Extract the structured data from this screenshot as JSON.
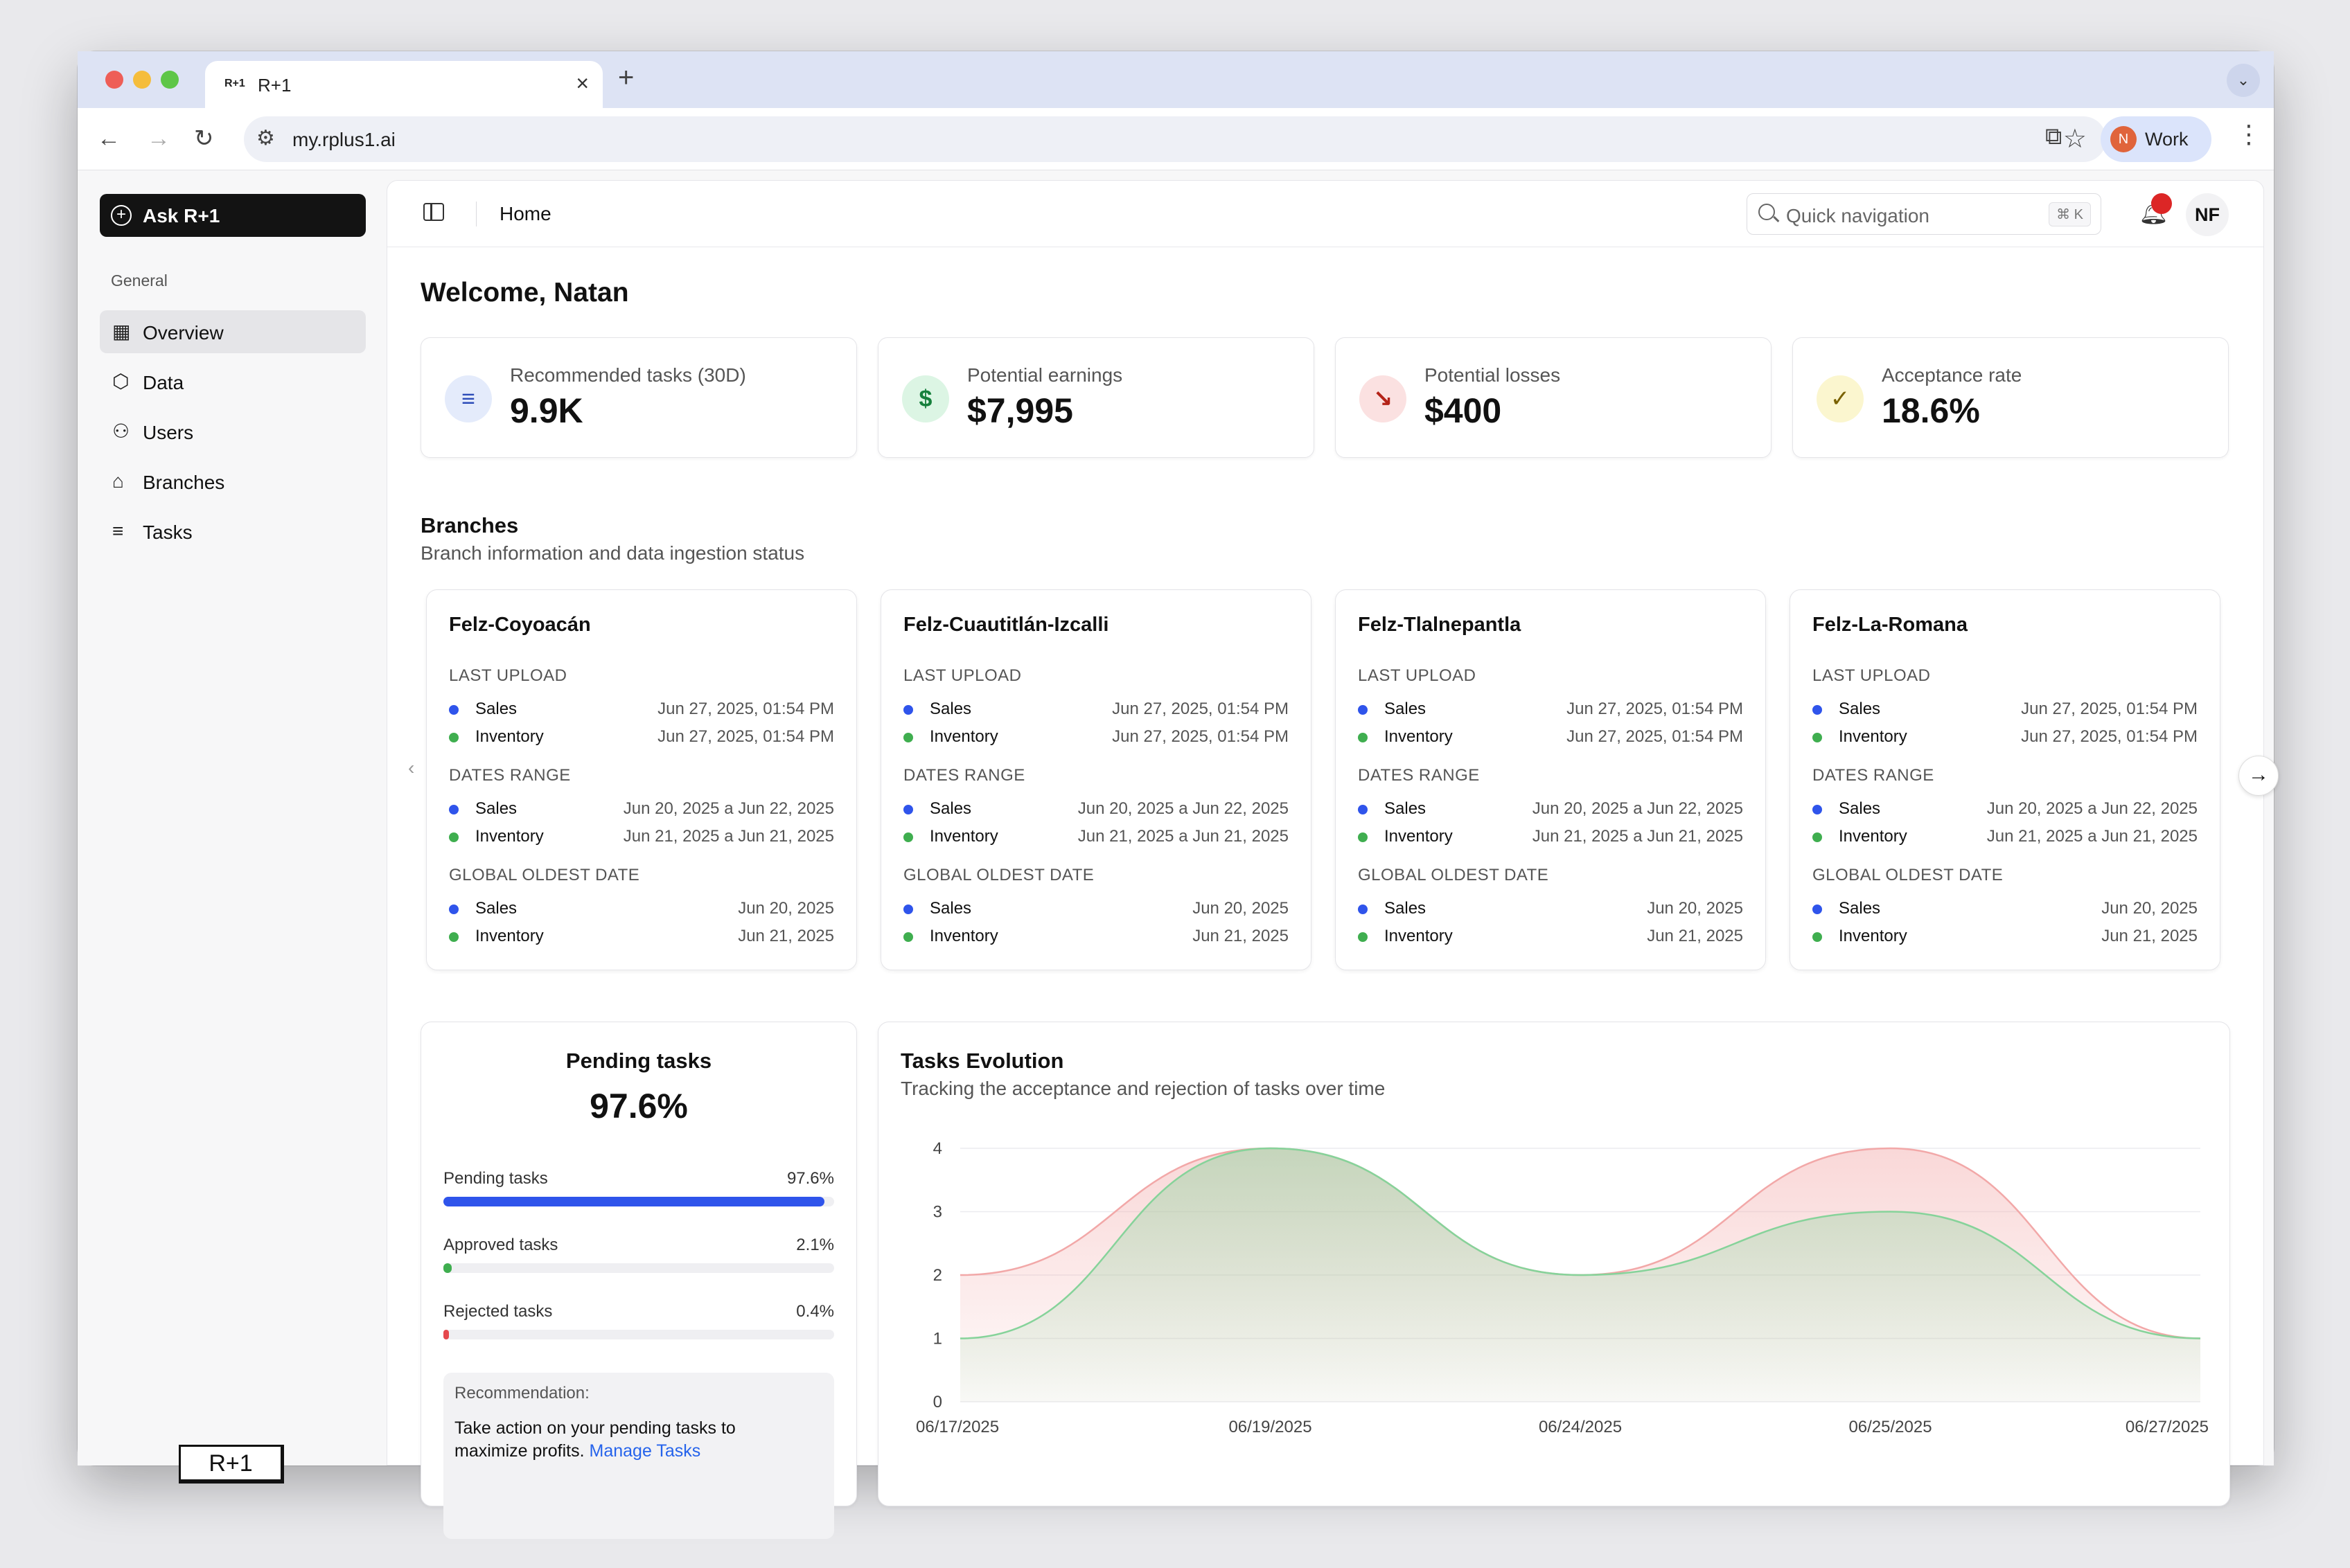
{
  "browser": {
    "tab_favicon": "R+1",
    "tab_title": "R+1",
    "new_tab": "+",
    "url": "my.rplus1.ai",
    "profile_initial": "N",
    "profile_label": "Work"
  },
  "sidebar": {
    "ask_button": "Ask R+1",
    "section": "General",
    "items": [
      {
        "label": "Overview",
        "icon": "grid-icon",
        "active": true
      },
      {
        "label": "Data",
        "icon": "box-icon",
        "active": false
      },
      {
        "label": "Users",
        "icon": "users-icon",
        "active": false
      },
      {
        "label": "Branches",
        "icon": "store-icon",
        "active": false
      },
      {
        "label": "Tasks",
        "icon": "list-check-icon",
        "active": false
      }
    ],
    "logo": "R+1"
  },
  "header": {
    "breadcrumb": "Home",
    "search_placeholder": "Quick navigation",
    "search_shortcut": "⌘ K",
    "user_initials": "NF"
  },
  "welcome": "Welcome, Natan",
  "kpis": [
    {
      "label": "Recommended tasks (30D)",
      "value": "9.9K",
      "icon": "list-check-icon",
      "glyph": "≡",
      "bg": "#e4ebfb",
      "fg": "#2b4bb8"
    },
    {
      "label": "Potential earnings",
      "value": "$7,995",
      "icon": "dollar-icon",
      "glyph": "$",
      "bg": "#dcf5e4",
      "fg": "#16803c"
    },
    {
      "label": "Potential losses",
      "value": "$400",
      "icon": "trending-down-icon",
      "glyph": "↘",
      "bg": "#fbe1e1",
      "fg": "#b42318"
    },
    {
      "label": "Acceptance rate",
      "value": "18.6%",
      "icon": "check-circle-icon",
      "glyph": "✓",
      "bg": "#fbf6cf",
      "fg": "#7a6200"
    }
  ],
  "branches_section": {
    "title": "Branches",
    "subtitle": "Branch information and data ingestion status"
  },
  "branch_labels": {
    "last_upload": "LAST UPLOAD",
    "dates_range": "DATES RANGE",
    "global_oldest": "GLOBAL OLDEST DATE",
    "sales": "Sales",
    "inventory": "Inventory"
  },
  "branches": [
    {
      "name": "Felz-Coyoacán",
      "last_upload_sales": "Jun 27, 2025, 01:54 PM",
      "last_upload_inventory": "Jun 27, 2025, 01:54 PM",
      "range_sales": "Jun 20, 2025 a Jun 22, 2025",
      "range_inventory": "Jun 21, 2025 a Jun 21, 2025",
      "oldest_sales": "Jun 20, 2025",
      "oldest_inventory": "Jun 21, 2025"
    },
    {
      "name": "Felz-Cuautitlán-Izcalli",
      "last_upload_sales": "Jun 27, 2025, 01:54 PM",
      "last_upload_inventory": "Jun 27, 2025, 01:54 PM",
      "range_sales": "Jun 20, 2025 a Jun 22, 2025",
      "range_inventory": "Jun 21, 2025 a Jun 21, 2025",
      "oldest_sales": "Jun 20, 2025",
      "oldest_inventory": "Jun 21, 2025"
    },
    {
      "name": "Felz-Tlalnepantla",
      "last_upload_sales": "Jun 27, 2025, 01:54 PM",
      "last_upload_inventory": "Jun 27, 2025, 01:54 PM",
      "range_sales": "Jun 20, 2025 a Jun 22, 2025",
      "range_inventory": "Jun 21, 2025 a Jun 21, 2025",
      "oldest_sales": "Jun 20, 2025",
      "oldest_inventory": "Jun 21, 2025"
    },
    {
      "name": "Felz-La-Romana",
      "last_upload_sales": "Jun 27, 2025, 01:54 PM",
      "last_upload_inventory": "Jun 27, 2025, 01:54 PM",
      "range_sales": "Jun 20, 2025 a Jun 22, 2025",
      "range_inventory": "Jun 21, 2025 a Jun 21, 2025",
      "oldest_sales": "Jun 20, 2025",
      "oldest_inventory": "Jun 21, 2025"
    }
  ],
  "colors": {
    "sales_dot": "#2f54eb",
    "inventory_dot": "#3fae4f",
    "approved_series": "#86d39a",
    "rejected_series": "#f2a8a8"
  },
  "pending": {
    "title": "Pending tasks",
    "value": "97.6%",
    "rows": [
      {
        "label": "Pending tasks",
        "pct": "97.6%",
        "fraction": 0.976,
        "color": "#2f54eb"
      },
      {
        "label": "Approved tasks",
        "pct": "2.1%",
        "fraction": 0.021,
        "color": "#3fae4f"
      },
      {
        "label": "Rejected tasks",
        "pct": "0.4%",
        "fraction": 0.004,
        "color": "#e5484d"
      }
    ],
    "recommendation_title": "Recommendation:",
    "recommendation_text": "Take action on your pending tasks to maximize profits.",
    "recommendation_link": "Manage Tasks"
  },
  "evolution": {
    "title": "Tasks Evolution",
    "subtitle": "Tracking the acceptance and rejection of tasks over time"
  },
  "chart_data": {
    "type": "area",
    "title": "Tasks Evolution",
    "x": [
      "06/17/2025",
      "06/19/2025",
      "06/24/2025",
      "06/25/2025",
      "06/27/2025"
    ],
    "ylim": [
      0,
      4
    ],
    "yticks": [
      0,
      1,
      2,
      3,
      4
    ],
    "grid": true,
    "series": [
      {
        "values": [
          1,
          4,
          2,
          3,
          1
        ],
        "color": "#86d39a"
      },
      {
        "values": [
          2,
          4,
          2,
          4,
          1
        ],
        "color": "#f2a8a8"
      }
    ]
  }
}
